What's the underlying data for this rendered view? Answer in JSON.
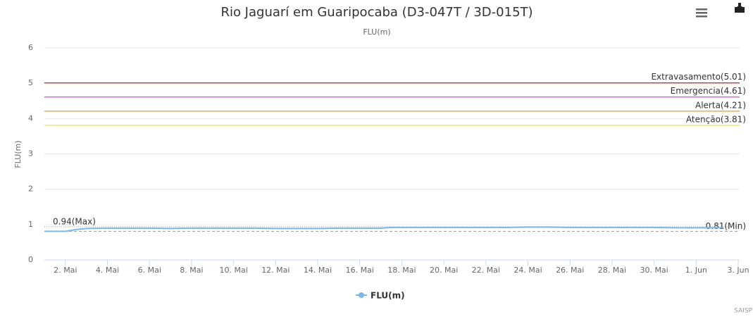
{
  "chart_data": {
    "type": "line",
    "title": "Rio Jaguarí em Guaripocaba (D3-047T / 3D-015T)",
    "subtitle": "FLU(m)",
    "y_label": "FLU(m)",
    "credits": "SAISP",
    "ylim": [
      0,
      6
    ],
    "yticks": [
      0,
      1,
      2,
      3,
      4,
      5,
      6
    ],
    "xlim": [
      0,
      33
    ],
    "xticks": [
      {
        "value": 1,
        "label": "2. Mai"
      },
      {
        "value": 3,
        "label": "4. Mai"
      },
      {
        "value": 5,
        "label": "6. Mai"
      },
      {
        "value": 7,
        "label": "8. Mai"
      },
      {
        "value": 9,
        "label": "10. Mai"
      },
      {
        "value": 11,
        "label": "12. Mai"
      },
      {
        "value": 13,
        "label": "14. Mai"
      },
      {
        "value": 15,
        "label": "16. Mai"
      },
      {
        "value": 17,
        "label": "18. Mai"
      },
      {
        "value": 19,
        "label": "20. Mai"
      },
      {
        "value": 21,
        "label": "22. Mai"
      },
      {
        "value": 23,
        "label": "24. Mai"
      },
      {
        "value": 25,
        "label": "26. Mai"
      },
      {
        "value": 27,
        "label": "28. Mai"
      },
      {
        "value": 29,
        "label": "30. Mai"
      },
      {
        "value": 31,
        "label": "1. Jun"
      },
      {
        "value": 33,
        "label": "3. Jun"
      }
    ],
    "grid": true,
    "series": [
      {
        "name": "FLU(m)",
        "color": "#7cb5ec",
        "x": [
          0,
          0.5,
          1,
          1.5,
          2,
          3,
          4,
          5,
          6,
          7,
          8,
          9,
          10,
          11,
          12,
          13,
          14,
          15,
          16,
          16.5,
          17,
          18,
          19,
          20,
          21,
          22,
          23,
          24,
          25,
          26,
          27,
          28,
          29,
          30,
          31,
          32.3
        ],
        "values": [
          0.81,
          0.81,
          0.81,
          0.86,
          0.89,
          0.9,
          0.9,
          0.9,
          0.89,
          0.9,
          0.9,
          0.9,
          0.9,
          0.89,
          0.89,
          0.89,
          0.9,
          0.9,
          0.9,
          0.92,
          0.92,
          0.92,
          0.92,
          0.92,
          0.92,
          0.92,
          0.93,
          0.93,
          0.92,
          0.92,
          0.92,
          0.92,
          0.92,
          0.91,
          0.91,
          0.91
        ]
      }
    ],
    "plot_lines": [
      {
        "value": 5.01,
        "label": "Extravasamento(5.01)",
        "color": "#e0302e"
      },
      {
        "value": 4.61,
        "label": "Emergencia(4.61)",
        "color": "#e040e0"
      },
      {
        "value": 4.21,
        "label": "Alerta(4.21)",
        "color": "#f0a040"
      },
      {
        "value": 3.81,
        "label": "Atenção(3.81)",
        "color": "#e8e840"
      }
    ],
    "max_line": {
      "value": 0.94,
      "label": "0.94(Max)"
    },
    "min_line": {
      "value": 0.81,
      "label": "0.81(Min)"
    }
  }
}
